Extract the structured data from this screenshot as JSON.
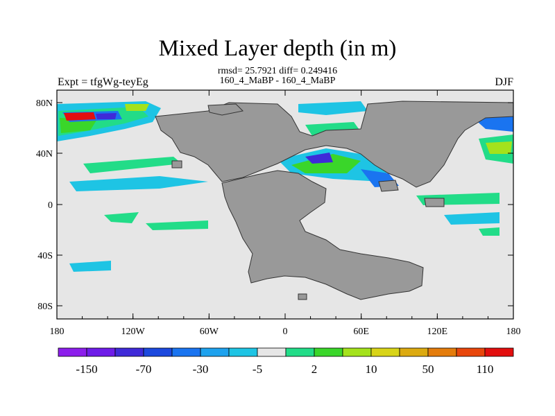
{
  "title": "Mixed Layer depth (in m)",
  "stats_line1": "rmsd= 25.7921 diff= 0.249416",
  "stats_line2": "160_4_MaBP - 160_4_MaBP",
  "left_label": "Expt = tfgWg-teyEg",
  "right_label": "DJF",
  "map": {
    "lon_ticks": [
      "180",
      "120W",
      "60W",
      "0",
      "60E",
      "120E",
      "180"
    ],
    "lat_ticks": [
      "80N",
      "40N",
      "0",
      "40S",
      "80S"
    ],
    "land_color": "#999999",
    "ocean_color": "#e6e6e6"
  },
  "colorbar": {
    "colors": [
      "#8c1eeb",
      "#6e1ce8",
      "#3f2ad8",
      "#1c49de",
      "#1a74f0",
      "#1ea2ee",
      "#1ec4e4",
      "#e6e6e6",
      "#22dc88",
      "#3ad62a",
      "#a4e21c",
      "#d8d418",
      "#dcaa10",
      "#e47c0c",
      "#e8460c",
      "#e20e0e"
    ],
    "labels": [
      "-150",
      "-70",
      "-30",
      "-5",
      "2",
      "10",
      "50",
      "110"
    ]
  }
}
